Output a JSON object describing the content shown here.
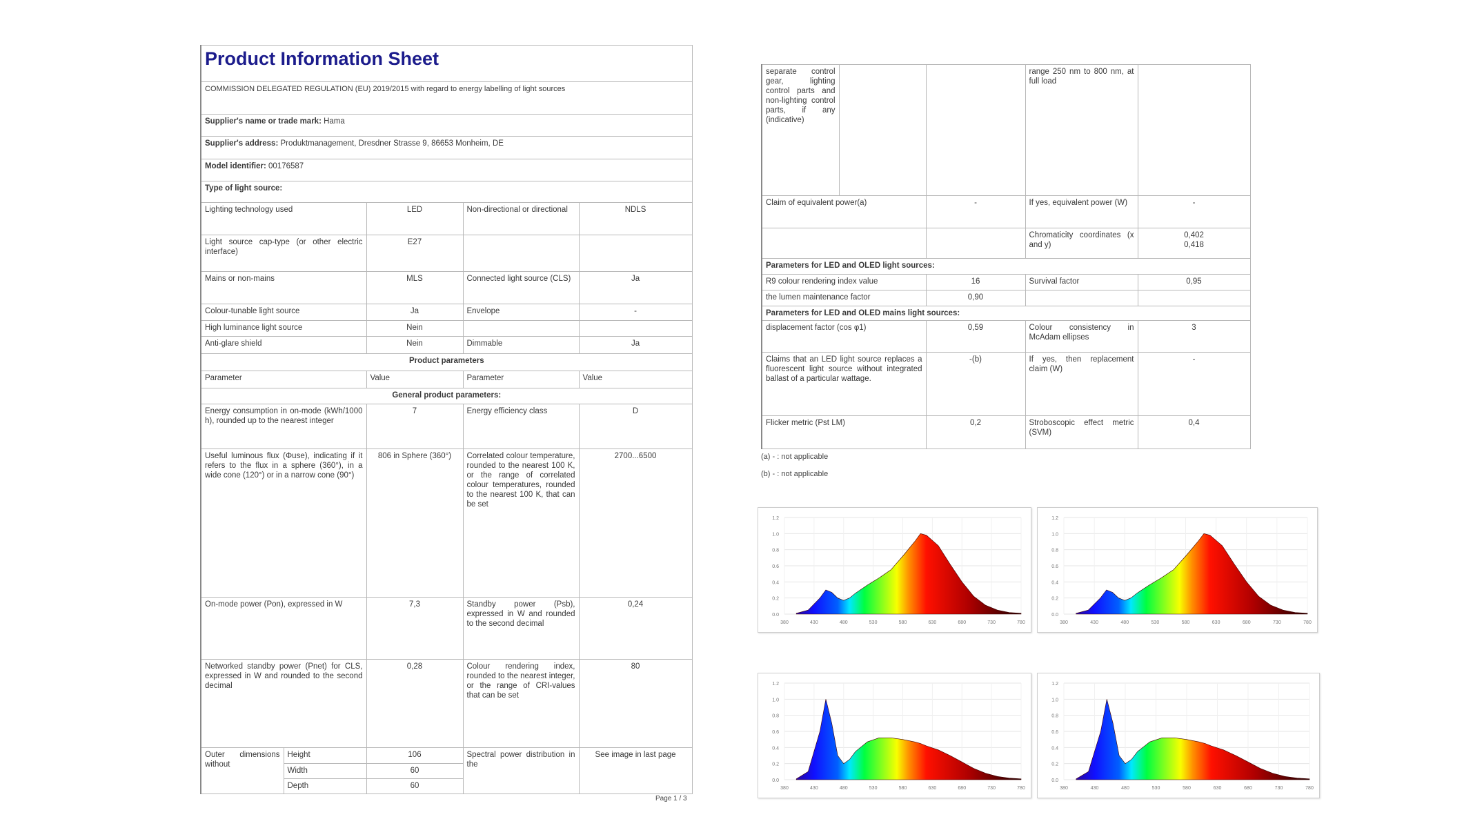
{
  "left_sheet": {
    "rows": [
      [
        "Product Information Sheet"
      ],
      [
        "COMMISSION DELEGATED REGULATION (EU) 2019/2015 with regard to energy labelling of light sources"
      ],
      [
        {
          "label": "Supplier's name or trade mark:",
          "value": " Hama"
        }
      ],
      [
        {
          "label": "Supplier's address:",
          "value": " Produktmanagement, Dresdner Strasse 9, 86653 Monheim, DE"
        }
      ],
      [
        {
          "label": "Model identifier:",
          "value": " 00176587"
        }
      ],
      [
        "Type of light source:"
      ],
      [
        "Lighting technology used",
        "LED",
        "Non-directional or directional",
        "NDLS"
      ],
      [
        "Light source cap-type (or other electric interface)",
        "E27",
        "",
        ""
      ],
      [
        "Mains or non-mains",
        "MLS",
        "Connected light source (CLS)",
        "Ja"
      ],
      [
        "Colour-tunable light source",
        "Ja",
        "Envelope",
        "-"
      ],
      [
        "High luminance light source",
        "Nein",
        "",
        ""
      ],
      [
        "Anti-glare shield",
        "Nein",
        "Dimmable",
        "Ja"
      ],
      [
        "Product parameters"
      ],
      [
        "Parameter",
        "Value",
        "Parameter",
        "Value"
      ],
      [
        "General product parameters:"
      ],
      [
        "Energy consumption in on-mode (kWh/1000 h), rounded up to the nearest integer",
        "7",
        "Energy efficiency class",
        "D"
      ],
      [
        "Useful luminous flux (Φuse), indicating if it refers to the flux in a sphere (360°), in a wide cone (120°) or in a narrow cone (90°)",
        "806 in Sphere (360°)",
        "Correlated colour temperature, rounded to the nearest 100 K, or the range of correlated colour temperatures, rounded to the nearest 100 K, that can be set",
        "2700...6500"
      ],
      [
        "On-mode power (Pon), expressed in W",
        "7,3",
        "Standby power (Psb), expressed in W and rounded to the second decimal",
        "0,24"
      ],
      [
        "Networked standby power (Pnet) for CLS, expressed in W and rounded to the second decimal",
        "0,28",
        "Colour rendering index, rounded to the nearest integer, or the range of CRI-values that can be set",
        "80"
      ],
      [
        "Outer dimensions without",
        "Height",
        "106",
        "Spectral power distribution in the",
        "See image in last page"
      ],
      [
        "Width",
        "60"
      ],
      [
        "Depth",
        "60"
      ]
    ],
    "page_number": "Page 1 / 3"
  },
  "right_sheet": {
    "rows": [
      [
        "separate control gear, lighting control parts and non-lighting control parts, if any (indicative)",
        "",
        "",
        "range 250 nm to 800 nm, at full load",
        ""
      ],
      [
        "Claim of equivalent power(a)",
        "-",
        "If yes, equivalent power (W)",
        "-"
      ],
      [
        "",
        "",
        "Chromaticity coordinates (x and y)",
        "0,402\n0,418"
      ],
      [
        "Parameters for LED and OLED light sources:"
      ],
      [
        "R9 colour rendering index value",
        "16",
        "Survival factor",
        "0,95"
      ],
      [
        "the lumen maintenance factor",
        "0,90",
        "",
        ""
      ],
      [
        "Parameters for LED and OLED mains light sources:"
      ],
      [
        "displacement factor (cos φ1)",
        "0,59",
        "Colour consistency in McAdam ellipses",
        "3"
      ],
      [
        "Claims that an LED light source replaces a fluorescent light source without integrated ballast of a particular wattage.",
        "-(b)",
        "If yes, then replacement claim (W)",
        "-"
      ],
      [
        "Flicker metric (Pst LM)",
        "0,2",
        "Stroboscopic effect metric (SVM)",
        "0,4"
      ]
    ],
    "footnotes": [
      "(a) - :  not applicable",
      "(b) - :  not applicable"
    ]
  },
  "chart_data": [
    {
      "type": "area",
      "title": "",
      "xlabel": "",
      "ylabel": "",
      "xlim": [
        380,
        780
      ],
      "ylim": [
        0,
        1.2
      ],
      "x_ticks": [
        "380",
        "430",
        "480",
        "530",
        "580",
        "630",
        "680",
        "730",
        "780"
      ],
      "y_ticks": [
        "0.0",
        "0.2",
        "0.4",
        "0.6",
        "0.8",
        "1.0",
        "1.2"
      ],
      "grid": true,
      "fill": "visible-spectrum",
      "x": [
        400,
        420,
        440,
        450,
        460,
        470,
        480,
        490,
        500,
        520,
        540,
        560,
        580,
        600,
        610,
        620,
        640,
        660,
        680,
        700,
        720,
        740,
        760,
        780
      ],
      "values": [
        0.01,
        0.05,
        0.2,
        0.3,
        0.27,
        0.2,
        0.17,
        0.2,
        0.26,
        0.36,
        0.45,
        0.55,
        0.72,
        0.9,
        1.0,
        0.98,
        0.85,
        0.62,
        0.4,
        0.22,
        0.11,
        0.05,
        0.02,
        0.01
      ]
    },
    {
      "type": "area",
      "title": "",
      "xlabel": "",
      "ylabel": "",
      "xlim": [
        380,
        780
      ],
      "ylim": [
        0,
        1.2
      ],
      "x_ticks": [
        "380",
        "430",
        "480",
        "530",
        "580",
        "630",
        "680",
        "730",
        "780"
      ],
      "y_ticks": [
        "0.0",
        "0.2",
        "0.4",
        "0.6",
        "0.8",
        "1.0",
        "1.2"
      ],
      "grid": true,
      "fill": "visible-spectrum",
      "x": [
        400,
        420,
        440,
        450,
        460,
        470,
        480,
        490,
        500,
        520,
        540,
        560,
        580,
        600,
        610,
        620,
        640,
        660,
        680,
        700,
        720,
        740,
        760,
        780
      ],
      "values": [
        0.01,
        0.05,
        0.2,
        0.3,
        0.27,
        0.2,
        0.17,
        0.2,
        0.26,
        0.36,
        0.45,
        0.55,
        0.72,
        0.9,
        1.0,
        0.98,
        0.85,
        0.62,
        0.4,
        0.22,
        0.11,
        0.05,
        0.02,
        0.01
      ]
    },
    {
      "type": "area",
      "title": "",
      "xlabel": "",
      "ylabel": "",
      "xlim": [
        380,
        780
      ],
      "ylim": [
        0,
        1.2
      ],
      "x_ticks": [
        "380",
        "430",
        "480",
        "530",
        "580",
        "630",
        "680",
        "730",
        "780"
      ],
      "y_ticks": [
        "0.0",
        "0.2",
        "0.4",
        "0.6",
        "0.8",
        "1.0",
        "1.2"
      ],
      "grid": true,
      "fill": "visible-spectrum",
      "x": [
        400,
        420,
        440,
        450,
        460,
        470,
        480,
        490,
        500,
        520,
        540,
        560,
        580,
        600,
        610,
        620,
        640,
        660,
        680,
        700,
        720,
        740,
        760,
        780
      ],
      "values": [
        0.01,
        0.1,
        0.6,
        1.0,
        0.7,
        0.3,
        0.2,
        0.25,
        0.35,
        0.47,
        0.52,
        0.52,
        0.5,
        0.47,
        0.45,
        0.42,
        0.37,
        0.3,
        0.22,
        0.14,
        0.08,
        0.04,
        0.02,
        0.01
      ]
    },
    {
      "type": "area",
      "title": "",
      "xlabel": "",
      "ylabel": "",
      "xlim": [
        380,
        780
      ],
      "ylim": [
        0,
        1.2
      ],
      "x_ticks": [
        "380",
        "430",
        "480",
        "530",
        "580",
        "630",
        "680",
        "730",
        "780"
      ],
      "y_ticks": [
        "0.0",
        "0.2",
        "0.4",
        "0.6",
        "0.8",
        "1.0",
        "1.2"
      ],
      "grid": true,
      "fill": "visible-spectrum",
      "x": [
        400,
        420,
        440,
        450,
        460,
        470,
        480,
        490,
        500,
        520,
        540,
        560,
        580,
        600,
        610,
        620,
        640,
        660,
        680,
        700,
        720,
        740,
        760,
        780
      ],
      "values": [
        0.01,
        0.1,
        0.6,
        1.0,
        0.7,
        0.3,
        0.2,
        0.25,
        0.35,
        0.47,
        0.52,
        0.52,
        0.5,
        0.47,
        0.45,
        0.42,
        0.37,
        0.3,
        0.22,
        0.14,
        0.08,
        0.04,
        0.02,
        0.01
      ]
    }
  ]
}
